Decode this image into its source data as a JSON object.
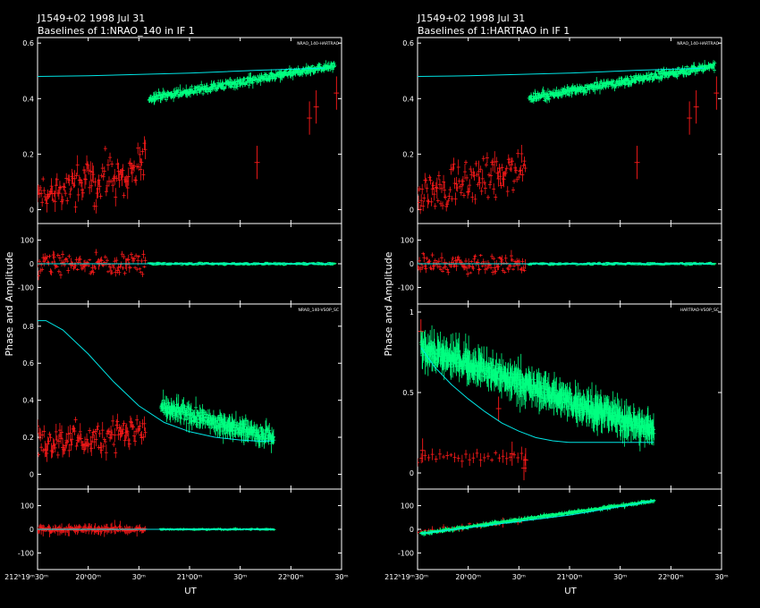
{
  "source": "J1549+02  1998 Jul 31",
  "y_axis_label": "Phase and Amplitude",
  "x_axis_label": "UT",
  "x_tick_labels": [
    "212ʰ19ᵐ30ᵐ",
    "20ʰ00ᵐ",
    "30ᵐ",
    "21ʰ00ᵐ",
    "30ᵐ",
    "22ʰ00ᵐ",
    "30ᵐ"
  ],
  "colors": {
    "background": "#000000",
    "frame": "#ffffff",
    "calibrator": "#ff1a1a",
    "target": "#00ff80",
    "model": "#00e5e5"
  },
  "chart_data": [
    {
      "type": "scatter",
      "title": "Baselines of 1:NRAO_140 in IF 1",
      "xlabel": "UT",
      "ylabel": "Phase and Amplitude",
      "x_range_min": [
        1170,
        1350
      ],
      "x_ticks_min": [
        1170,
        1200,
        1230,
        1260,
        1290,
        1320,
        1350
      ],
      "panels": [
        {
          "label": "NRAO_140-HARTRAO",
          "quantity": "amplitude",
          "ylim": [
            -0.05,
            0.62
          ],
          "yticks": [
            0,
            0.2,
            0.4,
            0.6
          ],
          "ytick_labels": [
            "0",
            "0.2",
            "0.4",
            "0.6"
          ],
          "model": {
            "x": [
              1170,
              1200,
              1230,
              1260,
              1280,
              1300,
              1320,
              1340
            ],
            "y": [
              0.48,
              0.482,
              0.487,
              0.492,
              0.497,
              0.502,
              0.506,
              0.51
            ]
          },
          "series": [
            {
              "name": "calibrator",
              "color": "red",
              "x_range": [
                1170,
                1234
              ],
              "level": [
                0.05,
                0.15
              ],
              "scatter": 0.12,
              "err": 0.04,
              "extra": [
                [
                  1300,
                  0.17
                ],
                [
                  1331,
                  0.33
                ],
                [
                  1335,
                  0.37
                ],
                [
                  1347,
                  0.42
                ]
              ]
            },
            {
              "name": "target",
              "color": "green",
              "x_range": [
                1236,
                1346
              ],
              "level": [
                0.4,
                0.52
              ],
              "scatter": 0.02,
              "err": 0.02
            }
          ]
        },
        {
          "label": "",
          "quantity": "phase",
          "ylim": [
            -170,
            170
          ],
          "yticks": [
            -100,
            0,
            100
          ],
          "ytick_labels": [
            "-100",
            "0",
            "100"
          ],
          "model": {
            "x": [
              1170,
              1345
            ],
            "y": [
              0,
              0
            ]
          },
          "series": [
            {
              "name": "calibrator",
              "color": "red",
              "x_range": [
                1170,
                1234
              ],
              "level": [
                0,
                0
              ],
              "scatter": 60,
              "err": 25
            },
            {
              "name": "target",
              "color": "green",
              "x_range": [
                1236,
                1346
              ],
              "level": [
                0,
                0
              ],
              "scatter": 8,
              "err": 4
            }
          ]
        },
        {
          "label": "NRAO_140-VSOP_SC",
          "quantity": "amplitude",
          "ylim": [
            -0.08,
            0.92
          ],
          "yticks": [
            0,
            0.2,
            0.4,
            0.6,
            0.8
          ],
          "ytick_labels": [
            "0",
            "0.2",
            "0.4",
            "0.6",
            "0.8"
          ],
          "model": {
            "x": [
              1170,
              1175,
              1185,
              1200,
              1215,
              1230,
              1245,
              1260,
              1275,
              1290,
              1300,
              1310
            ],
            "y": [
              0.83,
              0.83,
              0.78,
              0.65,
              0.5,
              0.37,
              0.28,
              0.23,
              0.2,
              0.185,
              0.18,
              0.18
            ]
          },
          "series": [
            {
              "name": "calibrator",
              "color": "red",
              "x_range": [
                1170,
                1234
              ],
              "level": [
                0.15,
                0.25
              ],
              "scatter": 0.13,
              "err": 0.06
            },
            {
              "name": "target",
              "color": "green",
              "x_range": [
                1243,
                1310
              ],
              "level": [
                0.36,
                0.2
              ],
              "scatter": 0.06,
              "err": 0.07
            }
          ]
        },
        {
          "label": "",
          "quantity": "phase",
          "ylim": [
            -170,
            170
          ],
          "yticks": [
            -100,
            0,
            100
          ],
          "ytick_labels": [
            "-100",
            "0",
            "100"
          ],
          "model": {
            "x": [
              1170,
              1310
            ],
            "y": [
              0,
              0
            ]
          },
          "series": [
            {
              "name": "calibrator",
              "color": "red",
              "x_range": [
                1170,
                1234
              ],
              "level": [
                0,
                0
              ],
              "scatter": 15,
              "err": 30
            },
            {
              "name": "target",
              "color": "green",
              "x_range": [
                1243,
                1310
              ],
              "level": [
                0,
                0
              ],
              "scatter": 5,
              "err": 6
            }
          ]
        }
      ]
    },
    {
      "type": "scatter",
      "title": "Baselines of 1:HARTRAO in IF 1",
      "xlabel": "UT",
      "ylabel": "Phase and Amplitude",
      "x_range_min": [
        1170,
        1350
      ],
      "x_ticks_min": [
        1170,
        1200,
        1230,
        1260,
        1290,
        1320,
        1350
      ],
      "panels": [
        {
          "label": "NRAO_140-HARTRAO",
          "quantity": "amplitude",
          "ylim": [
            -0.05,
            0.62
          ],
          "yticks": [
            0,
            0.2,
            0.4,
            0.6
          ],
          "ytick_labels": [
            "0",
            "0.2",
            "0.4",
            "0.6"
          ],
          "model": {
            "x": [
              1170,
              1200,
              1230,
              1260,
              1280,
              1300,
              1320,
              1340
            ],
            "y": [
              0.48,
              0.482,
              0.487,
              0.492,
              0.497,
              0.502,
              0.506,
              0.51
            ]
          },
          "series": [
            {
              "name": "calibrator",
              "color": "red",
              "x_range": [
                1170,
                1234
              ],
              "level": [
                0.05,
                0.15
              ],
              "scatter": 0.12,
              "err": 0.04,
              "extra": [
                [
                  1300,
                  0.17
                ],
                [
                  1331,
                  0.33
                ],
                [
                  1335,
                  0.37
                ],
                [
                  1347,
                  0.42
                ]
              ]
            },
            {
              "name": "target",
              "color": "green",
              "x_range": [
                1236,
                1346
              ],
              "level": [
                0.4,
                0.52
              ],
              "scatter": 0.02,
              "err": 0.02
            }
          ]
        },
        {
          "label": "",
          "quantity": "phase",
          "ylim": [
            -170,
            170
          ],
          "yticks": [
            -100,
            0,
            100
          ],
          "ytick_labels": [
            "-100",
            "0",
            "100"
          ],
          "model": {
            "x": [
              1170,
              1345
            ],
            "y": [
              0,
              0
            ]
          },
          "series": [
            {
              "name": "calibrator",
              "color": "red",
              "x_range": [
                1170,
                1234
              ],
              "level": [
                0,
                0
              ],
              "scatter": 60,
              "err": 25
            },
            {
              "name": "target",
              "color": "green",
              "x_range": [
                1236,
                1346
              ],
              "level": [
                0,
                0
              ],
              "scatter": 8,
              "err": 4
            }
          ]
        },
        {
          "label": "HARTRAO-VSOP_SC",
          "quantity": "amplitude",
          "ylim": [
            -0.1,
            1.05
          ],
          "yticks": [
            0,
            0.5,
            1
          ],
          "ytick_labels": [
            "0",
            "0.5",
            "1"
          ],
          "model": {
            "x": [
              1172,
              1180,
              1190,
              1200,
              1210,
              1220,
              1230,
              1240,
              1250,
              1260,
              1270,
              1300,
              1310
            ],
            "y": [
              0.78,
              0.66,
              0.55,
              0.46,
              0.38,
              0.31,
              0.26,
              0.22,
              0.2,
              0.19,
              0.19,
              0.19,
              0.19
            ]
          },
          "series": [
            {
              "name": "calibrator",
              "color": "red",
              "x_range": [
                1170,
                1234
              ],
              "level": [
                0.1,
                0.1
              ],
              "scatter": 0.05,
              "err": 0.05,
              "sparse": true,
              "extra": [
                [
                  1172,
                  0.88
                ],
                [
                  1173,
                  0.14
                ],
                [
                  1218,
                  0.4
                ],
                [
                  1226,
                  0.12
                ],
                [
                  1233,
                  0.03
                ],
                [
                  1234,
                  0.08
                ]
              ]
            },
            {
              "name": "target",
              "color": "green",
              "x_range": [
                1172,
                1310
              ],
              "level": [
                0.78,
                0.26
              ],
              "scatter": 0.09,
              "err": 0.14
            }
          ]
        },
        {
          "label": "",
          "quantity": "phase",
          "ylim": [
            -170,
            170
          ],
          "yticks": [
            -100,
            0,
            100
          ],
          "ytick_labels": [
            "-100",
            "0",
            "100"
          ],
          "model": {
            "x": [
              1172,
              1260,
              1310
            ],
            "y": [
              -18,
              60,
              120
            ]
          },
          "series": [
            {
              "name": "calibrator",
              "color": "red",
              "x_range": [
                1170,
                1234
              ],
              "level": [
                -10,
                40
              ],
              "scatter": 15,
              "err": 20,
              "sparse": true
            },
            {
              "name": "target",
              "color": "green",
              "x_range": [
                1172,
                1310
              ],
              "level": [
                -18,
                120
              ],
              "scatter": 8,
              "err": 12
            }
          ]
        }
      ]
    }
  ]
}
